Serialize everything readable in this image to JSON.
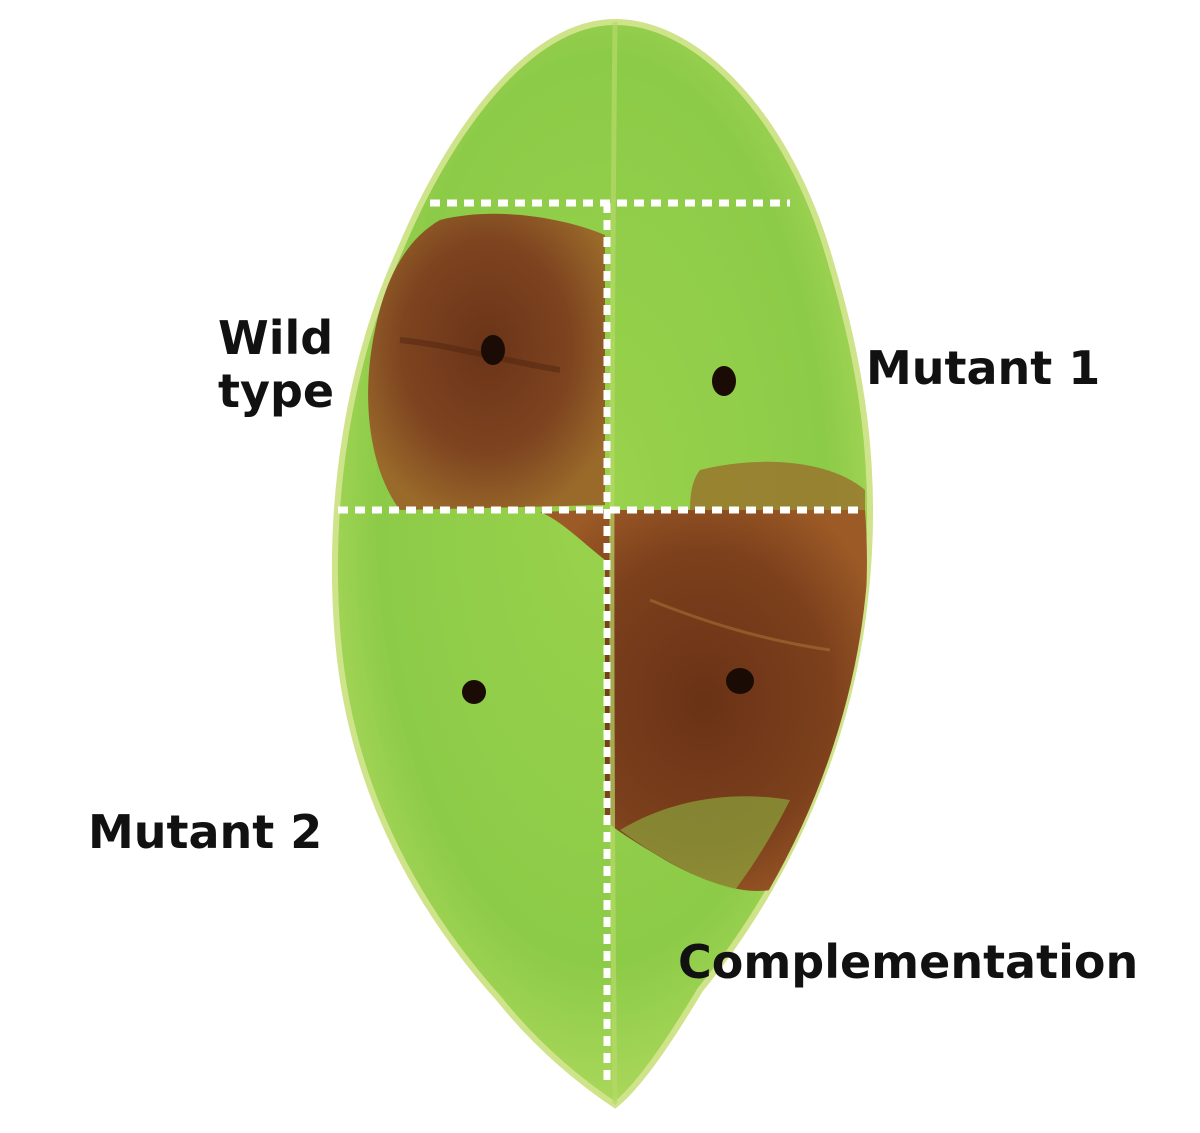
{
  "figure": {
    "labels": {
      "wild_type_line1": "Wild",
      "wild_type_line2": "type",
      "mutant_1": "Mutant 1",
      "mutant_2": "Mutant 2",
      "complementation": "Complementation"
    },
    "colors": {
      "leaf_green": "#8fcf4a",
      "leaf_edge": "#c9e36a",
      "lesion_brown": "#7a3f1c",
      "lesion_dark": "#5a2a12",
      "divider": "#ffffff",
      "text": "#111111"
    }
  }
}
